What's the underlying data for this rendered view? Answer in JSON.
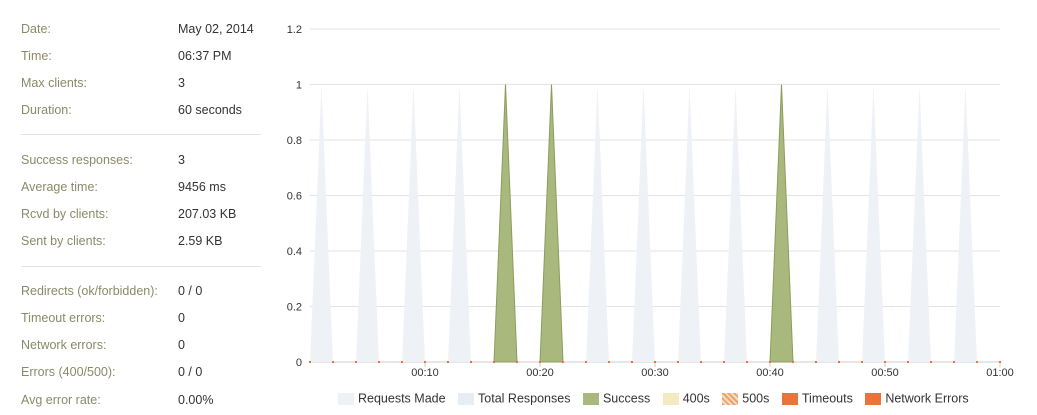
{
  "stats": {
    "group1": [
      {
        "label": "Date:",
        "value": "May 02, 2014"
      },
      {
        "label": "Time:",
        "value": "06:37 PM"
      },
      {
        "label": "Max clients:",
        "value": "3"
      },
      {
        "label": "Duration:",
        "value": "60 seconds"
      }
    ],
    "group2": [
      {
        "label": "Success responses:",
        "value": "3"
      },
      {
        "label": "Average time:",
        "value": "9456 ms"
      },
      {
        "label": "Rcvd by clients:",
        "value": "207.03 KB"
      },
      {
        "label": "Sent by clients:",
        "value": "2.59 KB"
      }
    ],
    "group3": [
      {
        "label": "Redirects (ok/forbidden):",
        "value": "0 / 0"
      },
      {
        "label": "Timeout errors:",
        "value": "0"
      },
      {
        "label": "Network errors:",
        "value": "0"
      },
      {
        "label": "Errors (400/500):",
        "value": "0 / 0"
      },
      {
        "label": "Avg error rate:",
        "value": "0.00%"
      }
    ]
  },
  "colors": {
    "requests_made": "#eef2f7",
    "total_responses": "#e6edf5",
    "success": "#a9b87c",
    "success_stroke": "#8d9c5e",
    "s400": "#f5e9c0",
    "s500": "#e8a46a",
    "timeouts": "#e8733c",
    "network_errors": "#e8733c",
    "grid": "#e3e3e3",
    "axis_text": "#333333",
    "stat_label": "#8a8a68"
  },
  "chart_data": {
    "type": "area",
    "x_unit": "seconds",
    "xlim": [
      0,
      60
    ],
    "ylim": [
      0,
      1.2
    ],
    "yticks": [
      0,
      0.2,
      0.4,
      0.6,
      0.8,
      1,
      1.2
    ],
    "ytick_labels": [
      "0",
      "0.2",
      "0.4",
      "0.6",
      "0.8",
      "1",
      "1.2"
    ],
    "xticks": [
      10,
      20,
      30,
      40,
      50,
      60
    ],
    "xtick_labels": [
      "00:10",
      "00:20",
      "00:30",
      "00:40",
      "00:50",
      "01:00"
    ],
    "spike_half_width": 1,
    "grid": true,
    "legend_position": "bottom",
    "legend": [
      "Requests Made",
      "Total Responses",
      "Success",
      "400s",
      "500s",
      "Timeouts",
      "Network Errors"
    ],
    "series": [
      {
        "name": "Requests Made",
        "color": "requests_made",
        "spikes_at": [
          1,
          5,
          9,
          13,
          17,
          21,
          25,
          29,
          33,
          37,
          41,
          45,
          49,
          53,
          57
        ],
        "values": [
          1,
          1,
          1,
          1,
          1,
          1,
          1,
          1,
          1,
          1,
          1,
          1,
          1,
          1,
          1
        ]
      },
      {
        "name": "Success",
        "color": "success",
        "spikes_at": [
          17,
          21,
          41
        ],
        "values": [
          1,
          1,
          1
        ]
      },
      {
        "name": "Timeouts",
        "color": "timeouts",
        "x": [
          0,
          2,
          4,
          6,
          8,
          10,
          12,
          14,
          16,
          18,
          20,
          22,
          24,
          26,
          28,
          30,
          32,
          34,
          36,
          38,
          40,
          42,
          44,
          46,
          48,
          50,
          52,
          54,
          56,
          58,
          60
        ],
        "values": [
          0,
          0,
          0,
          0,
          0,
          0,
          0,
          0,
          0,
          0,
          0,
          0,
          0,
          0,
          0,
          0,
          0,
          0,
          0,
          0,
          0,
          0,
          0,
          0,
          0,
          0,
          0,
          0,
          0,
          0,
          0
        ]
      }
    ]
  }
}
